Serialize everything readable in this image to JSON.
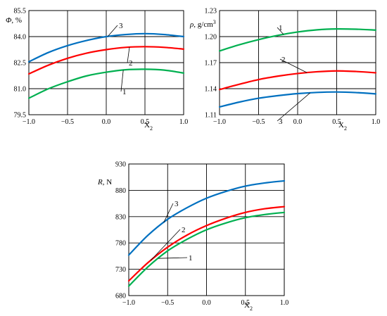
{
  "chart_data": [
    {
      "type": "line",
      "ylabel_name": "Φ",
      "ylabel_unit": ", %",
      "xlabel_main": "X",
      "xlabel_sub": "2",
      "xlim": [
        -1.0,
        1.0
      ],
      "ylim": [
        79.5,
        85.5
      ],
      "xticks": [
        "−1.0",
        "−0.5",
        "0.0",
        "0.5",
        "1.0"
      ],
      "yticks": [
        "79.5",
        "81.0",
        "82.5",
        "84.0",
        "85.5"
      ],
      "grid": true,
      "series": [
        {
          "name": "1",
          "color": "#00b050",
          "x": [
            -1.0,
            -0.75,
            -0.5,
            -0.25,
            0.0,
            0.25,
            0.5,
            0.75,
            1.0
          ],
          "y": [
            80.45,
            80.99,
            81.4,
            81.74,
            81.95,
            82.09,
            82.12,
            82.07,
            81.9
          ]
        },
        {
          "name": "2",
          "color": "#ff0000",
          "x": [
            -1.0,
            -0.75,
            -0.5,
            -0.25,
            0.0,
            0.25,
            0.5,
            0.75,
            1.0
          ],
          "y": [
            81.85,
            82.35,
            82.75,
            83.05,
            83.25,
            83.38,
            83.42,
            83.38,
            83.28
          ]
        },
        {
          "name": "3",
          "color": "#0070c0",
          "x": [
            -1.0,
            -0.75,
            -0.5,
            -0.25,
            0.0,
            0.25,
            0.5,
            0.75,
            1.0
          ],
          "y": [
            82.55,
            83.08,
            83.48,
            83.78,
            84.0,
            84.12,
            84.17,
            84.12,
            84.0
          ]
        }
      ]
    },
    {
      "type": "line",
      "ylabel_name": "ρ",
      "ylabel_unit": ", g/cm",
      "ylabel_sup": "3",
      "xlabel_main": "X",
      "xlabel_sub": "2",
      "xlim": [
        -1.0,
        1.0
      ],
      "ylim": [
        1.11,
        1.23
      ],
      "xticks": [
        "−1.0",
        "−0.5",
        "0.0",
        "0.5",
        "1.0"
      ],
      "yticks": [
        "1.11",
        "1.14",
        "1.17",
        "1.20",
        "1.23"
      ],
      "grid": true,
      "series": [
        {
          "name": "1",
          "color": "#00b050",
          "x": [
            -1.0,
            -0.75,
            -0.5,
            -0.25,
            0.0,
            0.25,
            0.5,
            0.75,
            1.0
          ],
          "y": [
            1.1835,
            1.1905,
            1.1965,
            1.2015,
            1.2053,
            1.2078,
            1.2088,
            1.2085,
            1.2075
          ]
        },
        {
          "name": "2",
          "color": "#ff0000",
          "x": [
            -1.0,
            -0.75,
            -0.5,
            -0.25,
            0.0,
            0.25,
            0.5,
            0.75,
            1.0
          ],
          "y": [
            1.139,
            1.145,
            1.1505,
            1.1545,
            1.1575,
            1.1595,
            1.1605,
            1.1598,
            1.1583
          ]
        },
        {
          "name": "3",
          "color": "#0070c0",
          "x": [
            -1.0,
            -0.75,
            -0.5,
            -0.25,
            0.0,
            0.25,
            0.5,
            0.75,
            1.0
          ],
          "y": [
            1.119,
            1.1245,
            1.129,
            1.132,
            1.1343,
            1.1357,
            1.1362,
            1.1355,
            1.134
          ]
        }
      ]
    },
    {
      "type": "line",
      "ylabel_name": "R",
      "ylabel_unit": ", N",
      "xlabel_main": "X",
      "xlabel_sub": "2",
      "xlim": [
        -1.0,
        1.0
      ],
      "ylim": [
        680,
        930
      ],
      "xticks": [
        "−1.0",
        "−0.5",
        "0.0",
        "0.5",
        "1.0"
      ],
      "yticks": [
        "680",
        "730",
        "780",
        "830",
        "880",
        "930"
      ],
      "grid": true,
      "series": [
        {
          "name": "1",
          "color": "#00b050",
          "x": [
            -1.0,
            -0.75,
            -0.5,
            -0.25,
            0.0,
            0.25,
            0.5,
            0.75,
            1.0
          ],
          "y": [
            698,
            735,
            765,
            787,
            805,
            818,
            828,
            834,
            838
          ]
        },
        {
          "name": "2",
          "color": "#ff0000",
          "x": [
            -1.0,
            -0.75,
            -0.5,
            -0.25,
            0.0,
            0.25,
            0.5,
            0.75,
            1.0
          ],
          "y": [
            708,
            743,
            772,
            795,
            813,
            827,
            838,
            845,
            849
          ]
        },
        {
          "name": "3",
          "color": "#0070c0",
          "x": [
            -1.0,
            -0.75,
            -0.5,
            -0.25,
            0.0,
            0.25,
            0.5,
            0.75,
            1.0
          ],
          "y": [
            757,
            795,
            825,
            847,
            865,
            878,
            888,
            894,
            898
          ]
        }
      ]
    }
  ]
}
